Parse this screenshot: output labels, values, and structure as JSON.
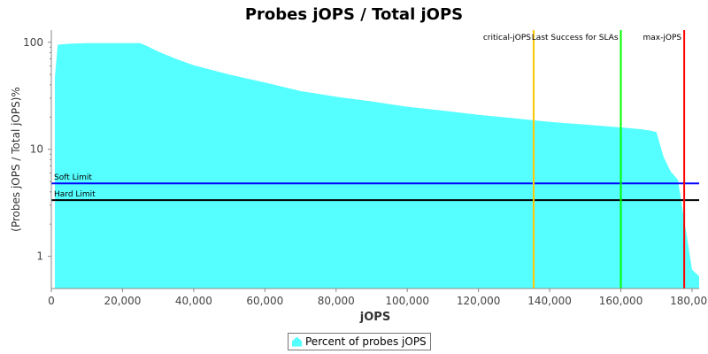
{
  "chart_data": {
    "type": "area",
    "title": "Probes jOPS / Total jOPS",
    "xlabel": "jOPS",
    "ylabel": "(Probes jOPS / Total jOPS)%",
    "y_scale": "log",
    "xlim": [
      0,
      182000
    ],
    "ylim": [
      0.5,
      130
    ],
    "x_ticks": [
      0,
      20000,
      40000,
      60000,
      80000,
      100000,
      120000,
      140000,
      160000,
      180000
    ],
    "x_tick_labels": [
      "0",
      "20,000",
      "40,000",
      "60,000",
      "80,000",
      "100,000",
      "120,000",
      "140,000",
      "160,000",
      "180,000"
    ],
    "y_ticks": [
      1,
      10,
      100
    ],
    "y_tick_labels": [
      "1",
      "10",
      "100"
    ],
    "grid": false,
    "legend_position": "bottom",
    "series": [
      {
        "name": "Percent of probes jOPS",
        "color": "#55ffff",
        "x": [
          1000,
          1800,
          5000,
          10000,
          15000,
          20000,
          25000,
          27000,
          30000,
          35000,
          40000,
          50000,
          60000,
          70000,
          80000,
          90000,
          100000,
          110000,
          120000,
          130000,
          140000,
          150000,
          160000,
          165000,
          168000,
          170000,
          172000,
          174000,
          176000,
          178000,
          180000,
          182000
        ],
        "y": [
          47,
          95,
          97,
          98,
          98,
          98,
          98,
          92,
          82,
          70,
          61,
          50,
          42,
          35,
          31,
          28,
          25,
          23,
          21,
          19.5,
          18,
          17,
          16,
          15.5,
          15,
          14.5,
          8.5,
          6.2,
          5.2,
          2.0,
          0.75,
          0.65
        ]
      }
    ],
    "horizontal_lines": [
      {
        "label": "Soft Limit",
        "y": 4.8,
        "color": "#0000ff"
      },
      {
        "label": "Hard Limit",
        "y": 3.35,
        "color": "#000000"
      }
    ],
    "vertical_lines": [
      {
        "label": "critical-jOPS",
        "x": 135500,
        "color": "#ffc800"
      },
      {
        "label": "Last Success for SLAs",
        "x": 160000,
        "color": "#00ff00"
      },
      {
        "label": "max-jOPS",
        "x": 177800,
        "color": "#ff0000"
      }
    ]
  }
}
